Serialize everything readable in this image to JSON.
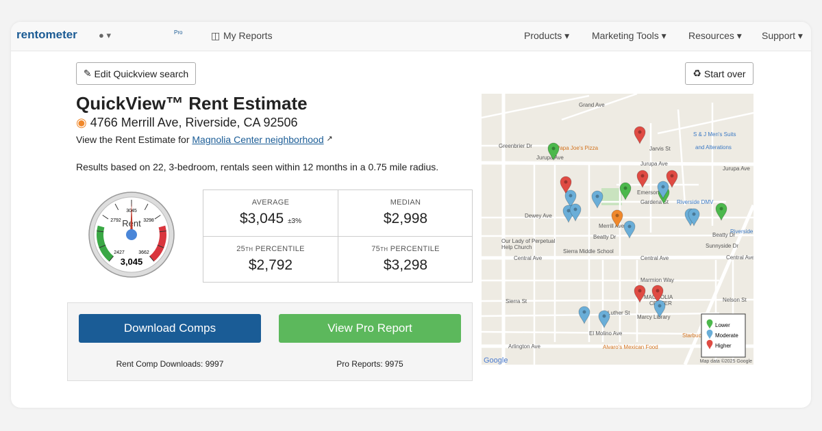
{
  "nav": {
    "logo": "rentometer",
    "user_badge": "Pro",
    "my_reports": "My Reports",
    "menu": [
      "Products",
      "Marketing Tools",
      "Resources",
      "Support"
    ]
  },
  "actions": {
    "edit": "Edit Quickview search",
    "start_over": "Start over"
  },
  "header": {
    "title": "QuickView™ Rent Estimate",
    "address": "4766 Merrill Ave, Riverside, CA 92506",
    "neighborhood_prefix": "View the Rent Estimate for",
    "neighborhood_link": "Magnolia Center neighborhood"
  },
  "summary": "Results based on 22, 3-bedroom, rentals seen within 12 months in a 0.75 mile radius.",
  "gauge": {
    "label": "Rent",
    "ticks": [
      "2427",
      "2792",
      "3045",
      "3298",
      "3662"
    ],
    "value": "3,045"
  },
  "stats": [
    {
      "label": "AVERAGE",
      "value": "$3,045",
      "note": "±3%"
    },
    {
      "label": "MEDIAN",
      "value": "$2,998"
    },
    {
      "number": "25",
      "suffix": "TH",
      "label": "PERCENTILE",
      "value": "$2,792"
    },
    {
      "number": "75",
      "suffix": "TH",
      "label": "PERCENTILE",
      "value": "$3,298"
    }
  ],
  "downloads": {
    "comps_button": "Download Comps",
    "pro_button": "View Pro Report",
    "comps_count": "Rent Comp Downloads: 9997",
    "pro_count": "Pro Reports: 9975"
  },
  "map": {
    "labels": [
      "Jurupa Ave",
      "Jurupa Ave",
      "Jurupa Ave",
      "Papa Joe's Pizza",
      "S & J Men's Suits",
      "and Alterations",
      "Greenbrier Dr",
      "Grand Ave",
      "Jarvis St",
      "Emerson St",
      "Gardena St",
      "Riverside DMV",
      "Dewey Ave",
      "Merrill Ave",
      "Beatty Dr",
      "Beatty Dr",
      "Sunnyside Dr",
      "Our Lady of Perpetual",
      "Help Church",
      "Sierra Middle School",
      "Central Ave",
      "Central Ave",
      "Central Ave",
      "Marmion Way",
      "MAGNOLIA",
      "CENTER",
      "Sierra St",
      "Luther St",
      "Marcy Library",
      "El Molino Ave",
      "Arlington Ave",
      "Alvaro's Mexican Food",
      "Starbucks",
      "Nelson St",
      "Riverside"
    ],
    "legend": [
      "Lower",
      "Moderate",
      "Higher"
    ],
    "google": "Google",
    "attribution": "Map data ©2025 Google"
  }
}
